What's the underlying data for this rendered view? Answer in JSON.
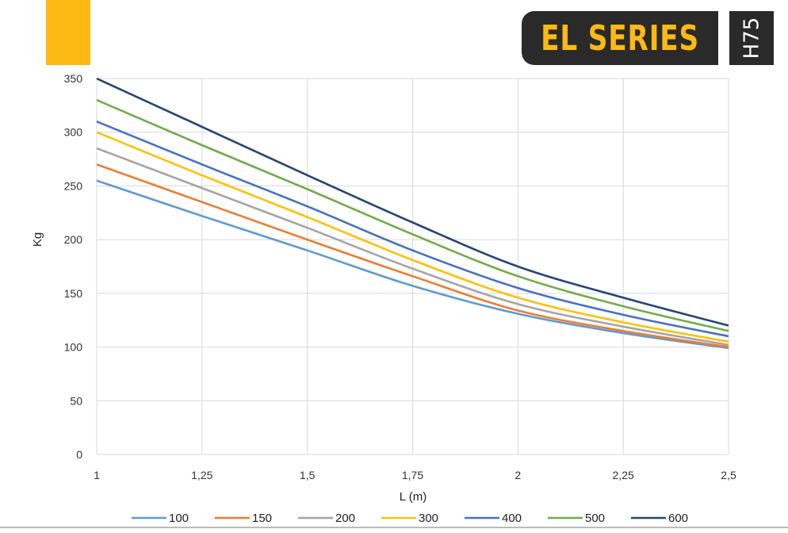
{
  "header": {
    "series_title": "EL SERIES",
    "model_code": "H75",
    "accent_color": "#FDB913",
    "badge_color": "#2a2a2a"
  },
  "chart_data": {
    "type": "line",
    "title": "",
    "xlabel": "L (m)",
    "ylabel": "Kg",
    "x": [
      1,
      1.25,
      1.5,
      1.75,
      2,
      2.25,
      2.5
    ],
    "x_tick_labels": [
      "1",
      "1,25",
      "1,5",
      "1,75",
      "2",
      "2,25",
      "2,5"
    ],
    "xlim": [
      1,
      2.5
    ],
    "ylim": [
      0,
      350
    ],
    "y_ticks": [
      0,
      50,
      100,
      150,
      200,
      250,
      300,
      350
    ],
    "grid": true,
    "legend": "bottom",
    "series": [
      {
        "name": "100",
        "color": "#5B9BD5",
        "values": [
          255,
          222,
          190,
          157,
          131,
          113,
          99
        ]
      },
      {
        "name": "150",
        "color": "#ED7D31",
        "values": [
          270,
          235,
          200,
          166,
          134,
          115,
          100
        ]
      },
      {
        "name": "200",
        "color": "#A5A5A5",
        "values": [
          285,
          248,
          211,
          173,
          140,
          119,
          102
        ]
      },
      {
        "name": "300",
        "color": "#FFC000",
        "values": [
          300,
          260,
          221,
          181,
          146,
          123,
          105
        ]
      },
      {
        "name": "400",
        "color": "#4472C4",
        "values": [
          310,
          270,
          231,
          190,
          155,
          130,
          110
        ]
      },
      {
        "name": "500",
        "color": "#70AD47",
        "values": [
          330,
          288,
          247,
          205,
          166,
          138,
          115
        ]
      },
      {
        "name": "600",
        "color": "#264478",
        "values": [
          350,
          305,
          260,
          216,
          175,
          146,
          120
        ]
      }
    ]
  }
}
